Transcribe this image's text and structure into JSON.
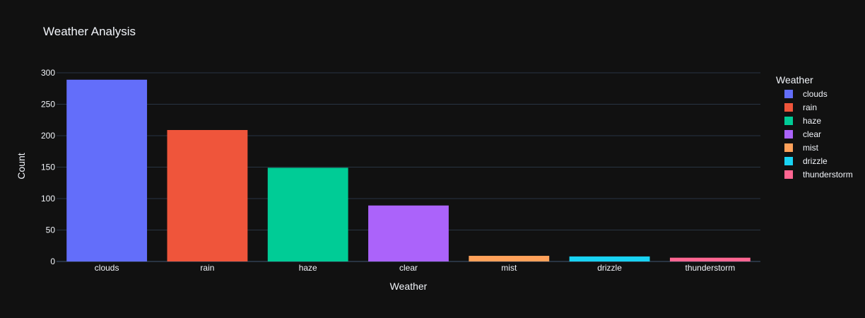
{
  "chart_data": {
    "type": "bar",
    "title": "Weather Analysis",
    "xlabel": "Weather",
    "ylabel": "Count",
    "categories": [
      "clouds",
      "rain",
      "haze",
      "clear",
      "mist",
      "drizzle",
      "thunderstorm"
    ],
    "values": [
      289,
      209,
      149,
      89,
      9,
      8,
      6
    ],
    "colors": [
      "#636efa",
      "#EF553B",
      "#00cc96",
      "#ab63fa",
      "#FFA15A",
      "#19d3f3",
      "#FF6692"
    ],
    "ylim": [
      0,
      300
    ],
    "yticks": [
      0,
      50,
      100,
      150,
      200,
      250,
      300
    ],
    "grid": true,
    "legend": {
      "title": "Weather",
      "placement": "right"
    },
    "background": "#111111",
    "gridcolor": "#283442"
  }
}
